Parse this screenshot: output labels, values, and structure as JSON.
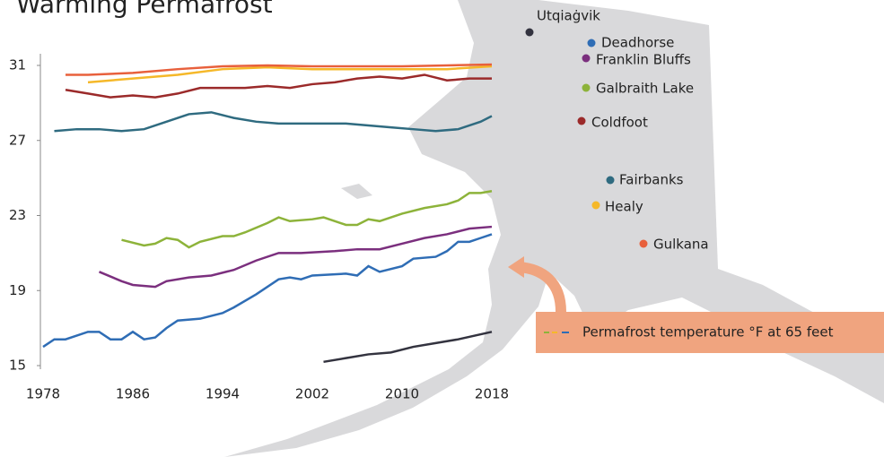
{
  "chart_data": {
    "type": "line",
    "title": "Warming Permafrost",
    "annotation": "Permafrost temperature °F at 65 feet",
    "xlim": [
      1978,
      2018
    ],
    "xticks": [
      1978,
      1986,
      1994,
      2002,
      2010,
      2018
    ],
    "ylim": [
      15,
      31
    ],
    "yticks": [
      15,
      19,
      23,
      27,
      31
    ],
    "series": [
      {
        "name": "Utqiaġvik",
        "color": "#33333f",
        "x": [
          2003,
          2005,
          2007,
          2009,
          2011,
          2013,
          2015,
          2018
        ],
        "values": [
          15.2,
          15.4,
          15.6,
          15.7,
          16.0,
          16.2,
          16.4,
          16.8
        ]
      },
      {
        "name": "Deadhorse",
        "color": "#2f6db5",
        "x": [
          1978,
          1979,
          1980,
          1982,
          1983,
          1984,
          1985,
          1986,
          1987,
          1988,
          1989,
          1990,
          1992,
          1994,
          1995,
          1997,
          1999,
          2000,
          2001,
          2002,
          2005,
          2006,
          2007,
          2008,
          2010,
          2011,
          2013,
          2014,
          2015,
          2016,
          2017,
          2018
        ],
        "values": [
          16.0,
          16.4,
          16.4,
          16.8,
          16.8,
          16.4,
          16.4,
          16.8,
          16.4,
          16.5,
          17.0,
          17.4,
          17.5,
          17.8,
          18.1,
          18.8,
          19.6,
          19.7,
          19.6,
          19.8,
          19.9,
          19.8,
          20.3,
          20.0,
          20.3,
          20.7,
          20.8,
          21.1,
          21.6,
          21.6,
          21.8,
          22.0
        ]
      },
      {
        "name": "Franklin Bluffs",
        "color": "#7b2f7e",
        "x": [
          1983,
          1985,
          1986,
          1988,
          1989,
          1991,
          1993,
          1995,
          1997,
          1999,
          2001,
          2004,
          2006,
          2008,
          2010,
          2012,
          2014,
          2016,
          2018
        ],
        "values": [
          20.0,
          19.5,
          19.3,
          19.2,
          19.5,
          19.7,
          19.8,
          20.1,
          20.6,
          21.0,
          21.0,
          21.1,
          21.2,
          21.2,
          21.5,
          21.8,
          22.0,
          22.3,
          22.4
        ]
      },
      {
        "name": "Galbraith Lake",
        "color": "#8db33a",
        "x": [
          1985,
          1987,
          1988,
          1989,
          1990,
          1991,
          1992,
          1994,
          1995,
          1996,
          1998,
          1999,
          2000,
          2002,
          2003,
          2005,
          2006,
          2007,
          2008,
          2010,
          2012,
          2014,
          2015,
          2016,
          2017,
          2018
        ],
        "values": [
          21.7,
          21.4,
          21.5,
          21.8,
          21.7,
          21.3,
          21.6,
          21.9,
          21.9,
          22.1,
          22.6,
          22.9,
          22.7,
          22.8,
          22.9,
          22.5,
          22.5,
          22.8,
          22.7,
          23.1,
          23.4,
          23.6,
          23.8,
          24.2,
          24.2,
          24.3
        ]
      },
      {
        "name": "Coldfoot",
        "color": "#9b2a2a",
        "x": [
          1980,
          1982,
          1984,
          1986,
          1988,
          1990,
          1992,
          1994,
          1996,
          1998,
          2000,
          2002,
          2004,
          2006,
          2008,
          2010,
          2012,
          2014,
          2016,
          2018
        ],
        "values": [
          29.7,
          29.5,
          29.3,
          29.4,
          29.3,
          29.5,
          29.8,
          29.8,
          29.8,
          29.9,
          29.8,
          30.0,
          30.1,
          30.3,
          30.4,
          30.3,
          30.5,
          30.2,
          30.3,
          30.3
        ]
      },
      {
        "name": "Fairbanks",
        "color": "#2f6b80",
        "x": [
          1979,
          1981,
          1983,
          1985,
          1987,
          1989,
          1991,
          1993,
          1995,
          1997,
          1999,
          2001,
          2003,
          2005,
          2007,
          2009,
          2011,
          2013,
          2015,
          2017,
          2018
        ],
        "values": [
          27.5,
          27.6,
          27.6,
          27.5,
          27.6,
          28.0,
          28.4,
          28.5,
          28.2,
          28.0,
          27.9,
          27.9,
          27.9,
          27.9,
          27.8,
          27.7,
          27.6,
          27.5,
          27.6,
          28.0,
          28.3
        ]
      },
      {
        "name": "Healy",
        "color": "#f5b829",
        "x": [
          1982,
          1986,
          1990,
          1994,
          1998,
          2002,
          2006,
          2010,
          2014,
          2018
        ],
        "values": [
          30.1,
          30.3,
          30.5,
          30.8,
          30.9,
          30.8,
          30.8,
          30.8,
          30.8,
          30.95
        ]
      },
      {
        "name": "Gulkana",
        "color": "#e8603c",
        "x": [
          1980,
          1982,
          1986,
          1990,
          1994,
          1998,
          2002,
          2006,
          2010,
          2014,
          2018
        ],
        "values": [
          30.5,
          30.5,
          30.6,
          30.8,
          30.95,
          31.0,
          30.95,
          30.95,
          30.95,
          31.0,
          31.05
        ]
      }
    ]
  }
}
